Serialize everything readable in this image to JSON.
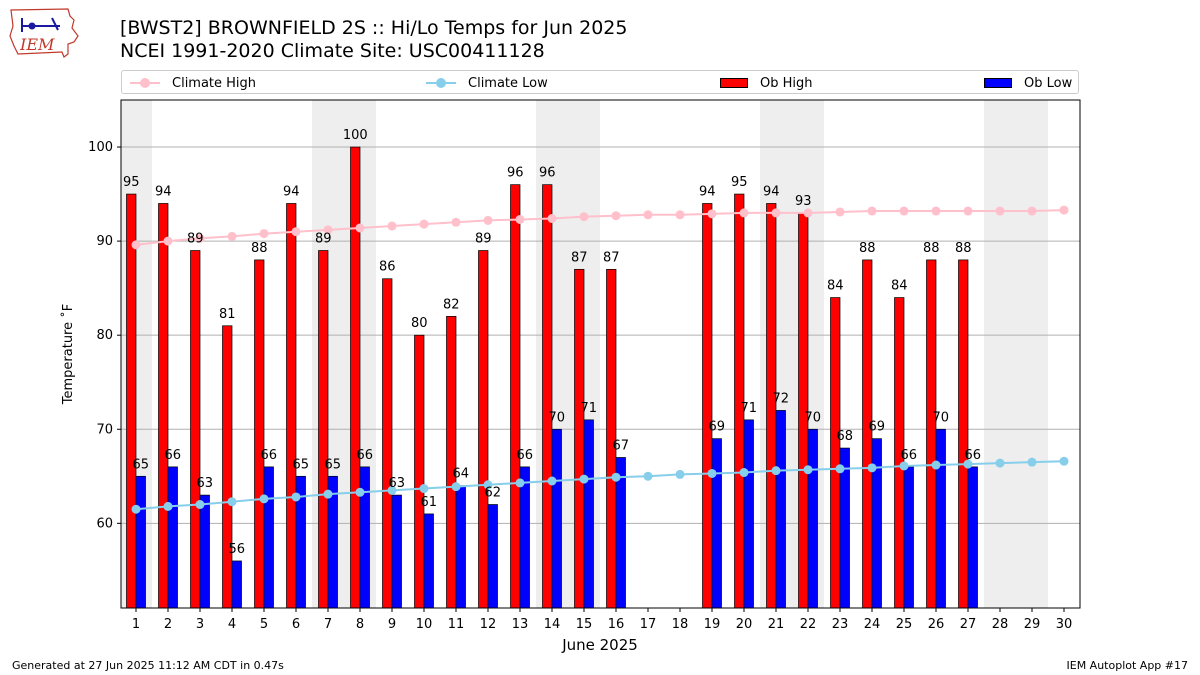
{
  "logo": {
    "text": "IEM"
  },
  "header": {
    "title_line1": "[BWST2] BROWNFIELD 2S :: Hi/Lo Temps for Jun 2025",
    "title_line2": "NCEI 1991-2020 Climate Site: USC00411128"
  },
  "legend": {
    "climate_high": "Climate High",
    "climate_low": "Climate Low",
    "ob_high": "Ob High",
    "ob_low": "Ob Low"
  },
  "colors": {
    "ob_high": "#ff0000",
    "ob_low": "#0000ff",
    "climate_high": "#ffc0cb",
    "climate_low": "#87ceeb",
    "weekend_shade": "#eeeeee",
    "grid": "#b0b0b0"
  },
  "chart_data": {
    "type": "bar",
    "title": "[BWST2] BROWNFIELD 2S :: Hi/Lo Temps for Jun 2025",
    "subtitle": "NCEI 1991-2020 Climate Site: USC00411128",
    "xlabel": "June 2025",
    "ylabel": "Temperature ˚F",
    "ylim": [
      51,
      105
    ],
    "yticks": [
      60,
      70,
      80,
      90,
      100
    ],
    "grid": true,
    "legend_position": "top",
    "days": [
      1,
      2,
      3,
      4,
      5,
      6,
      7,
      8,
      9,
      10,
      11,
      12,
      13,
      14,
      15,
      16,
      17,
      18,
      19,
      20,
      21,
      22,
      23,
      24,
      25,
      26,
      27,
      28,
      29,
      30
    ],
    "weekend_days": [
      1,
      7,
      8,
      14,
      15,
      21,
      22,
      28,
      29
    ],
    "series": [
      {
        "name": "Ob High",
        "type": "bar",
        "values": [
          95,
          94,
          89,
          81,
          88,
          94,
          89,
          100,
          86,
          80,
          82,
          89,
          96,
          96,
          87,
          87,
          null,
          null,
          94,
          95,
          94,
          93,
          84,
          88,
          84,
          88,
          88,
          null,
          null,
          null
        ]
      },
      {
        "name": "Ob Low",
        "type": "bar",
        "values": [
          65,
          66,
          63,
          56,
          66,
          65,
          65,
          66,
          63,
          61,
          64,
          62,
          66,
          70,
          71,
          67,
          null,
          null,
          69,
          71,
          72,
          70,
          68,
          69,
          66,
          70,
          66,
          null,
          null,
          null
        ]
      },
      {
        "name": "Climate High",
        "type": "line",
        "values": [
          89.6,
          90.0,
          90.3,
          90.5,
          90.8,
          91.0,
          91.2,
          91.4,
          91.6,
          91.8,
          92.0,
          92.2,
          92.3,
          92.4,
          92.6,
          92.7,
          92.8,
          92.8,
          92.9,
          93.0,
          93.0,
          93.0,
          93.1,
          93.2,
          93.2,
          93.2,
          93.2,
          93.2,
          93.2,
          93.3
        ]
      },
      {
        "name": "Climate Low",
        "type": "line",
        "values": [
          61.5,
          61.8,
          62.0,
          62.3,
          62.6,
          62.8,
          63.1,
          63.3,
          63.5,
          63.7,
          63.9,
          64.1,
          64.3,
          64.5,
          64.7,
          64.9,
          65.0,
          65.2,
          65.3,
          65.4,
          65.6,
          65.7,
          65.8,
          65.9,
          66.1,
          66.2,
          66.3,
          66.4,
          66.5,
          66.6
        ]
      }
    ]
  },
  "footer": {
    "generated": "Generated at 27 Jun 2025 11:12 AM CDT in 0.47s",
    "app": "IEM Autoplot App #17"
  }
}
